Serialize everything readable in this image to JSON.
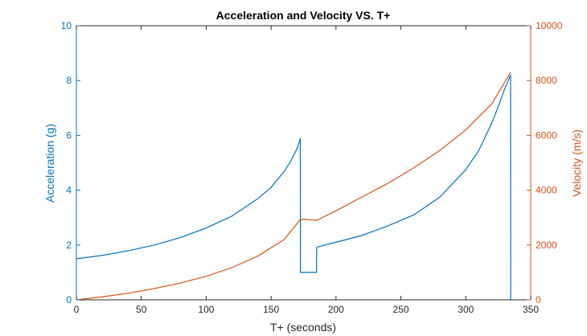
{
  "chart_data": {
    "type": "line",
    "title": "Acceleration and Velocity VS. T+",
    "xlabel": "T+ (seconds)",
    "xlim": [
      0,
      350
    ],
    "xticks": [
      0,
      50,
      100,
      150,
      200,
      250,
      300,
      350
    ],
    "ylabel_left": "Acceleration (g)",
    "ylim_left": [
      0,
      10
    ],
    "yticks_left": [
      0,
      2,
      4,
      6,
      8,
      10
    ],
    "ylabel_right": "Velocity (m/s)",
    "ylim_right": [
      0,
      10000
    ],
    "yticks_right": [
      0,
      2000,
      4000,
      6000,
      8000,
      10000
    ],
    "grid": false,
    "colors": {
      "left": "#0072BD",
      "right": "#D95319",
      "axes": "#262626"
    },
    "series": [
      {
        "axis": "left",
        "x": [
          0,
          20,
          40,
          60,
          80,
          100,
          120,
          140,
          150,
          160,
          165,
          170,
          172.5,
          172.6,
          173,
          185,
          185.1,
          186,
          200,
          220,
          240,
          260,
          280,
          300,
          310,
          320,
          325,
          330,
          334.5,
          334.6,
          335
        ],
        "y": [
          1.5,
          1.62,
          1.79,
          2.0,
          2.27,
          2.62,
          3.06,
          3.7,
          4.1,
          4.68,
          5.05,
          5.52,
          5.88,
          1.0,
          1.0,
          1.0,
          1.9,
          1.93,
          2.1,
          2.35,
          2.7,
          3.1,
          3.75,
          4.75,
          5.45,
          6.45,
          7.05,
          7.7,
          8.2,
          0.0,
          0.0
        ]
      },
      {
        "axis": "right",
        "x": [
          0,
          20,
          40,
          60,
          80,
          100,
          120,
          140,
          160,
          172,
          175,
          180,
          185,
          200,
          220,
          240,
          260,
          280,
          300,
          320,
          334.5
        ],
        "y": [
          0,
          110,
          240,
          410,
          610,
          860,
          1180,
          1600,
          2200,
          2900,
          2940,
          2920,
          2900,
          3250,
          3750,
          4250,
          4820,
          5450,
          6200,
          7150,
          8300
        ]
      }
    ]
  }
}
